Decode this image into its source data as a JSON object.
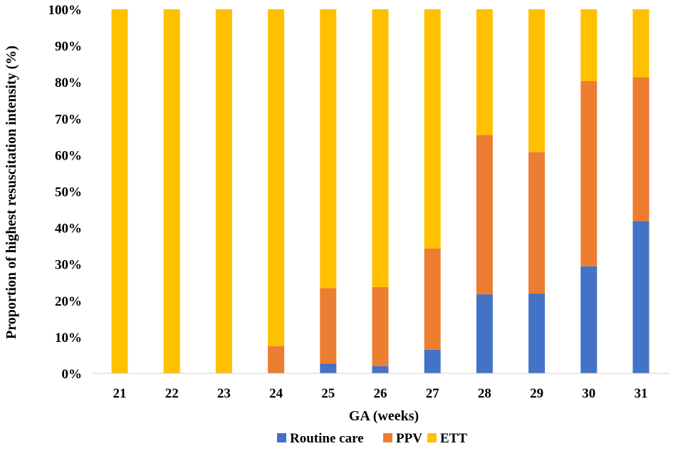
{
  "chart_data": {
    "type": "bar",
    "stacked": true,
    "percent": true,
    "title": "",
    "xlabel": "GA (weeks)",
    "ylabel": "Proportion of highest resuscitation intensity (%)",
    "ylim": [
      0,
      100
    ],
    "yticks": [
      "0%",
      "10%",
      "20%",
      "30%",
      "40%",
      "50%",
      "60%",
      "70%",
      "80%",
      "90%",
      "100%"
    ],
    "categories": [
      "21",
      "22",
      "23",
      "24",
      "25",
      "26",
      "27",
      "28",
      "29",
      "30",
      "31"
    ],
    "series": [
      {
        "name": "Routine care",
        "color": "#4472C4",
        "values": [
          0,
          0,
          0,
          0,
          2.7,
          2.0,
          6.5,
          21.7,
          21.9,
          29.4,
          41.8
        ]
      },
      {
        "name": "PPV",
        "color": "#ED7D31",
        "values": [
          0,
          0,
          0,
          7.5,
          20.7,
          21.7,
          27.8,
          43.8,
          38.9,
          50.9,
          39.5
        ]
      },
      {
        "name": "ETT",
        "color": "#FFC000",
        "values": [
          100,
          100,
          100,
          92.5,
          76.6,
          76.3,
          65.7,
          34.5,
          39.2,
          19.7,
          18.7
        ]
      }
    ],
    "legend": {
      "position": "bottom"
    },
    "grid": false
  }
}
